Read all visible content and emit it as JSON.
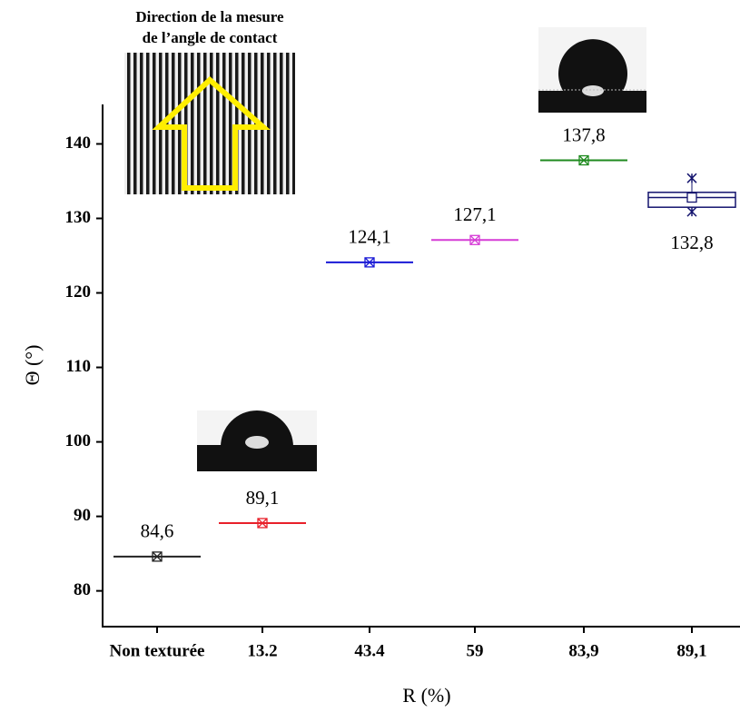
{
  "chart_data": {
    "type": "scatter",
    "annotations": [
      "Direction de la mesure",
      "de l’angle de contact"
    ],
    "x_label": "R (%)",
    "y_label": "Θ (°)",
    "categories": [
      "Non texturée",
      "13.2",
      "43.4",
      "59",
      "83,9",
      "89,1"
    ],
    "values": [
      84.6,
      89.1,
      124.1,
      127.1,
      137.8,
      132.8
    ],
    "value_labels": [
      "84,6",
      "89,1",
      "124,1",
      "127,1",
      "137,8",
      "132,8"
    ],
    "colors": [
      "#222222",
      "#e8202a",
      "#1a1ad6",
      "#d63cd6",
      "#1f8a1f",
      "#14146e"
    ],
    "box_stats": [
      null,
      null,
      null,
      null,
      null,
      {
        "q1": 131.5,
        "q3": 133.5,
        "min": 130.9,
        "max": 135.4
      }
    ],
    "ylim": [
      75.2,
      145.3
    ],
    "yticks": [
      80,
      90,
      100,
      110,
      120,
      130,
      140
    ]
  }
}
